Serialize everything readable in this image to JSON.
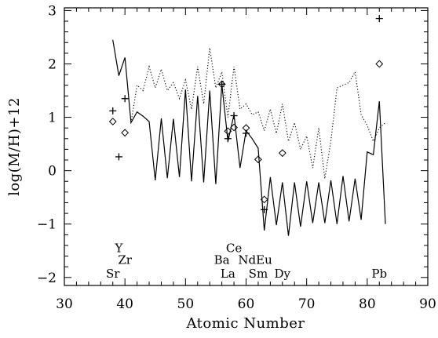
{
  "chart_data": {
    "type": "line",
    "xlabel": "Atomic Number",
    "ylabel": "log(M/H)+12",
    "xlim": [
      30,
      90
    ],
    "ylim": [
      -2.15,
      3.05
    ],
    "x_ticks": [
      "30",
      "40",
      "50",
      "60",
      "70",
      "80",
      "90"
    ],
    "y_ticks": [
      "−2",
      "−1",
      "0",
      "1",
      "2",
      "3"
    ],
    "series": [
      {
        "style": "solid",
        "points": [
          [
            38,
            2.45
          ],
          [
            39,
            1.78
          ],
          [
            40,
            2.12
          ],
          [
            41,
            0.9
          ],
          [
            42,
            1.1
          ],
          [
            43,
            1.02
          ],
          [
            44,
            0.92
          ],
          [
            45,
            -0.18
          ],
          [
            46,
            0.98
          ],
          [
            47,
            -0.14
          ],
          [
            48,
            0.97
          ],
          [
            49,
            -0.12
          ],
          [
            50,
            1.52
          ],
          [
            51,
            -0.2
          ],
          [
            52,
            1.4
          ],
          [
            53,
            -0.22
          ],
          [
            54,
            1.5
          ],
          [
            55,
            -0.25
          ],
          [
            56,
            1.62
          ],
          [
            57,
            0.55
          ],
          [
            58,
            1.05
          ],
          [
            59,
            0.05
          ],
          [
            60,
            0.75
          ],
          [
            61,
            0.6
          ],
          [
            62,
            0.42
          ],
          [
            63,
            -1.12
          ],
          [
            64,
            -0.12
          ],
          [
            65,
            -1.02
          ],
          [
            66,
            -0.22
          ],
          [
            67,
            -1.22
          ],
          [
            68,
            -0.22
          ],
          [
            69,
            -1.05
          ],
          [
            70,
            -0.2
          ],
          [
            71,
            -0.98
          ],
          [
            72,
            -0.22
          ],
          [
            73,
            -0.98
          ],
          [
            74,
            -0.18
          ],
          [
            75,
            -1.0
          ],
          [
            76,
            -0.1
          ],
          [
            77,
            -0.95
          ],
          [
            78,
            -0.15
          ],
          [
            79,
            -0.92
          ],
          [
            80,
            0.35
          ],
          [
            81,
            0.3
          ],
          [
            82,
            1.3
          ],
          [
            83,
            -1.0
          ]
        ]
      },
      {
        "style": "dotted",
        "points": [
          [
            41,
            0.9
          ],
          [
            42,
            1.6
          ],
          [
            43,
            1.5
          ],
          [
            44,
            1.95
          ],
          [
            45,
            1.55
          ],
          [
            46,
            1.9
          ],
          [
            47,
            1.5
          ],
          [
            48,
            1.65
          ],
          [
            49,
            1.35
          ],
          [
            50,
            1.7
          ],
          [
            51,
            1.15
          ],
          [
            52,
            1.95
          ],
          [
            53,
            1.25
          ],
          [
            54,
            2.3
          ],
          [
            55,
            1.55
          ],
          [
            56,
            1.85
          ],
          [
            57,
            1.0
          ],
          [
            58,
            1.95
          ],
          [
            59,
            1.15
          ],
          [
            60,
            1.25
          ],
          [
            61,
            1.05
          ],
          [
            62,
            1.1
          ],
          [
            63,
            0.75
          ],
          [
            64,
            1.15
          ],
          [
            65,
            0.7
          ],
          [
            66,
            1.25
          ],
          [
            67,
            0.55
          ],
          [
            68,
            0.9
          ],
          [
            69,
            0.4
          ],
          [
            70,
            0.65
          ],
          [
            71,
            0.05
          ],
          [
            72,
            0.8
          ],
          [
            73,
            -0.15
          ],
          [
            74,
            0.55
          ],
          [
            75,
            1.55
          ],
          [
            76,
            1.6
          ],
          [
            77,
            1.65
          ],
          [
            78,
            1.85
          ],
          [
            79,
            1.05
          ],
          [
            80,
            0.85
          ],
          [
            81,
            0.55
          ],
          [
            82,
            0.8
          ],
          [
            83,
            0.9
          ]
        ]
      }
    ],
    "markers": {
      "plus": [
        [
          38,
          1.12
        ],
        [
          39,
          0.26
        ],
        [
          40,
          1.35
        ],
        [
          56,
          1.62
        ],
        [
          57,
          0.6
        ],
        [
          58,
          1.03
        ],
        [
          60,
          0.7
        ],
        [
          63,
          -0.73
        ],
        [
          82,
          2.85
        ]
      ],
      "diamond": [
        [
          38,
          0.92
        ],
        [
          40,
          0.71
        ],
        [
          56,
          1.62
        ],
        [
          57,
          0.74
        ],
        [
          58,
          0.81
        ],
        [
          60,
          0.8
        ],
        [
          62,
          0.21
        ],
        [
          63,
          -0.54
        ],
        [
          66,
          0.33
        ],
        [
          82,
          2.0
        ]
      ]
    },
    "element_labels": [
      {
        "text": "Y",
        "x": 39,
        "y": -1.45
      },
      {
        "text": "Zr",
        "x": 40,
        "y": -1.67
      },
      {
        "text": "Sr",
        "x": 38,
        "y": -1.93
      },
      {
        "text": "Ce",
        "x": 58,
        "y": -1.45
      },
      {
        "text": "Ba",
        "x": 56,
        "y": -1.67
      },
      {
        "text": "La",
        "x": 57,
        "y": -1.93
      },
      {
        "text": "NdEu",
        "x": 61.5,
        "y": -1.67
      },
      {
        "text": "Sm",
        "x": 62,
        "y": -1.93
      },
      {
        "text": "Dy",
        "x": 66,
        "y": -1.93
      },
      {
        "text": "Pb",
        "x": 82,
        "y": -1.93
      }
    ]
  }
}
